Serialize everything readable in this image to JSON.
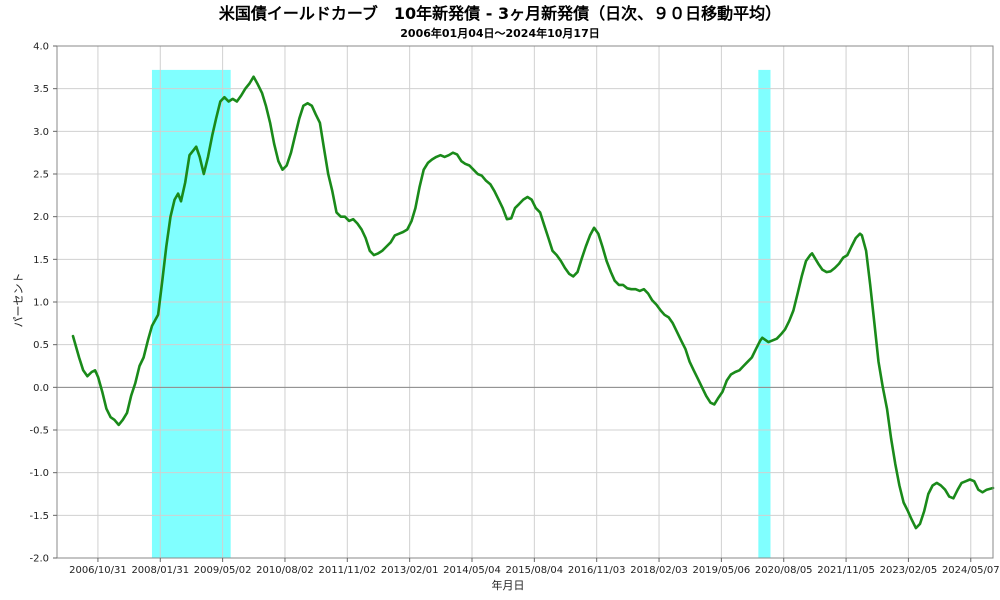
{
  "chart_data": {
    "type": "line",
    "title": "米国債イールドカーブ　10年新発債 - 3ヶ月新発債（日次、９０日移動平均）",
    "subtitle": "2006年01月04日～2024年10月17日",
    "xlabel": "年月日",
    "ylabel": "パーセント",
    "x_range": [
      "2006-01-04",
      "2024-10-17"
    ],
    "ylim": [
      -2.0,
      4.0
    ],
    "y_ticks": [
      "4.0",
      "3.5",
      "3.0",
      "2.5",
      "2.0",
      "1.5",
      "1.0",
      "0.5",
      "0.0",
      "-0.5",
      "-1.0",
      "-1.5",
      "-2.0"
    ],
    "x_tick_labels": [
      {
        "date": "2006-10-31",
        "label": "2006/10/31"
      },
      {
        "date": "2008-01-31",
        "label": "2008/01/31"
      },
      {
        "date": "2009-05-02",
        "label": "2009/05/02"
      },
      {
        "date": "2010-08-02",
        "label": "2010/08/02"
      },
      {
        "date": "2011-11-02",
        "label": "2011/11/02"
      },
      {
        "date": "2013-02-01",
        "label": "2013/02/01"
      },
      {
        "date": "2014-05-04",
        "label": "2014/05/04"
      },
      {
        "date": "2015-08-04",
        "label": "2015/08/04"
      },
      {
        "date": "2016-11-03",
        "label": "2016/11/03"
      },
      {
        "date": "2018-02-03",
        "label": "2018/02/03"
      },
      {
        "date": "2019-05-06",
        "label": "2019/05/06"
      },
      {
        "date": "2020-08-05",
        "label": "2020/08/05"
      },
      {
        "date": "2021-11-05",
        "label": "2021/11/05"
      },
      {
        "date": "2023-02-05",
        "label": "2023/02/05"
      },
      {
        "date": "2024-05-07",
        "label": "2024/05/07"
      }
    ],
    "grid": true,
    "zero_line": true,
    "recession_shading": [
      {
        "start": "2007-12-01",
        "end": "2009-06-30"
      },
      {
        "start": "2020-02-01",
        "end": "2020-04-30"
      }
    ],
    "series": [
      {
        "color": "#1a8a1a",
        "points": [
          [
            "2006-05-01",
            0.6
          ],
          [
            "2006-06-15",
            0.35
          ],
          [
            "2006-07-15",
            0.2
          ],
          [
            "2006-08-15",
            0.13
          ],
          [
            "2006-09-15",
            0.18
          ],
          [
            "2006-10-10",
            0.2
          ],
          [
            "2006-11-01",
            0.12
          ],
          [
            "2006-12-01",
            -0.05
          ],
          [
            "2007-01-01",
            -0.25
          ],
          [
            "2007-02-01",
            -0.35
          ],
          [
            "2007-03-01",
            -0.38
          ],
          [
            "2007-04-01",
            -0.44
          ],
          [
            "2007-05-01",
            -0.38
          ],
          [
            "2007-06-01",
            -0.3
          ],
          [
            "2007-07-01",
            -0.1
          ],
          [
            "2007-08-01",
            0.05
          ],
          [
            "2007-09-01",
            0.25
          ],
          [
            "2007-10-01",
            0.35
          ],
          [
            "2007-11-01",
            0.55
          ],
          [
            "2007-12-01",
            0.72
          ],
          [
            "2008-01-15",
            0.85
          ],
          [
            "2008-02-15",
            1.25
          ],
          [
            "2008-03-15",
            1.65
          ],
          [
            "2008-04-15",
            2.0
          ],
          [
            "2008-05-15",
            2.2
          ],
          [
            "2008-06-10",
            2.27
          ],
          [
            "2008-07-01",
            2.18
          ],
          [
            "2008-08-01",
            2.4
          ],
          [
            "2008-09-01",
            2.72
          ],
          [
            "2008-10-01",
            2.78
          ],
          [
            "2008-10-20",
            2.82
          ],
          [
            "2008-11-15",
            2.7
          ],
          [
            "2008-12-15",
            2.5
          ],
          [
            "2009-01-15",
            2.7
          ],
          [
            "2009-02-15",
            2.95
          ],
          [
            "2009-03-15",
            3.15
          ],
          [
            "2009-04-15",
            3.35
          ],
          [
            "2009-05-15",
            3.4
          ],
          [
            "2009-06-15",
            3.35
          ],
          [
            "2009-07-15",
            3.38
          ],
          [
            "2009-08-15",
            3.35
          ],
          [
            "2009-09-15",
            3.42
          ],
          [
            "2009-10-15",
            3.5
          ],
          [
            "2009-11-15",
            3.56
          ],
          [
            "2009-12-15",
            3.64
          ],
          [
            "2010-01-15",
            3.55
          ],
          [
            "2010-02-15",
            3.45
          ],
          [
            "2010-03-15",
            3.3
          ],
          [
            "2010-04-15",
            3.1
          ],
          [
            "2010-05-15",
            2.85
          ],
          [
            "2010-06-15",
            2.65
          ],
          [
            "2010-07-15",
            2.55
          ],
          [
            "2010-08-15",
            2.6
          ],
          [
            "2010-09-15",
            2.75
          ],
          [
            "2010-10-15",
            2.95
          ],
          [
            "2010-11-15",
            3.15
          ],
          [
            "2010-12-15",
            3.3
          ],
          [
            "2011-01-15",
            3.33
          ],
          [
            "2011-02-15",
            3.3
          ],
          [
            "2011-03-15",
            3.2
          ],
          [
            "2011-04-15",
            3.1
          ],
          [
            "2011-05-15",
            2.8
          ],
          [
            "2011-06-15",
            2.5
          ],
          [
            "2011-07-15",
            2.3
          ],
          [
            "2011-08-15",
            2.05
          ],
          [
            "2011-09-15",
            2.0
          ],
          [
            "2011-10-15",
            2.0
          ],
          [
            "2011-11-15",
            1.95
          ],
          [
            "2011-12-15",
            1.97
          ],
          [
            "2012-01-15",
            1.92
          ],
          [
            "2012-02-15",
            1.85
          ],
          [
            "2012-03-15",
            1.75
          ],
          [
            "2012-04-15",
            1.6
          ],
          [
            "2012-05-15",
            1.55
          ],
          [
            "2012-06-15",
            1.57
          ],
          [
            "2012-07-15",
            1.6
          ],
          [
            "2012-08-15",
            1.65
          ],
          [
            "2012-09-15",
            1.7
          ],
          [
            "2012-10-15",
            1.78
          ],
          [
            "2012-11-15",
            1.8
          ],
          [
            "2012-12-15",
            1.82
          ],
          [
            "2013-01-15",
            1.85
          ],
          [
            "2013-02-15",
            1.95
          ],
          [
            "2013-03-15",
            2.1
          ],
          [
            "2013-04-15",
            2.35
          ],
          [
            "2013-05-15",
            2.55
          ],
          [
            "2013-06-15",
            2.63
          ],
          [
            "2013-07-15",
            2.67
          ],
          [
            "2013-08-15",
            2.7
          ],
          [
            "2013-09-15",
            2.72
          ],
          [
            "2013-10-15",
            2.7
          ],
          [
            "2013-11-15",
            2.72
          ],
          [
            "2013-12-15",
            2.75
          ],
          [
            "2014-01-15",
            2.73
          ],
          [
            "2014-02-15",
            2.65
          ],
          [
            "2014-03-15",
            2.62
          ],
          [
            "2014-04-15",
            2.6
          ],
          [
            "2014-05-15",
            2.55
          ],
          [
            "2014-06-15",
            2.5
          ],
          [
            "2014-07-15",
            2.48
          ],
          [
            "2014-08-15",
            2.42
          ],
          [
            "2014-09-15",
            2.38
          ],
          [
            "2014-10-15",
            2.3
          ],
          [
            "2014-11-15",
            2.2
          ],
          [
            "2014-12-15",
            2.1
          ],
          [
            "2015-01-15",
            1.97
          ],
          [
            "2015-02-15",
            1.98
          ],
          [
            "2015-03-15",
            2.1
          ],
          [
            "2015-04-15",
            2.15
          ],
          [
            "2015-05-15",
            2.2
          ],
          [
            "2015-06-15",
            2.23
          ],
          [
            "2015-07-15",
            2.2
          ],
          [
            "2015-08-15",
            2.1
          ],
          [
            "2015-09-15",
            2.05
          ],
          [
            "2015-10-15",
            1.9
          ],
          [
            "2015-11-15",
            1.75
          ],
          [
            "2015-12-15",
            1.6
          ],
          [
            "2016-01-15",
            1.55
          ],
          [
            "2016-02-15",
            1.48
          ],
          [
            "2016-03-15",
            1.4
          ],
          [
            "2016-04-15",
            1.33
          ],
          [
            "2016-05-15",
            1.3
          ],
          [
            "2016-06-15",
            1.35
          ],
          [
            "2016-07-15",
            1.5
          ],
          [
            "2016-08-15",
            1.65
          ],
          [
            "2016-09-15",
            1.78
          ],
          [
            "2016-10-15",
            1.87
          ],
          [
            "2016-11-15",
            1.8
          ],
          [
            "2016-12-15",
            1.65
          ],
          [
            "2017-01-15",
            1.48
          ],
          [
            "2017-02-15",
            1.35
          ],
          [
            "2017-03-15",
            1.25
          ],
          [
            "2017-04-15",
            1.2
          ],
          [
            "2017-05-15",
            1.2
          ],
          [
            "2017-06-15",
            1.16
          ],
          [
            "2017-07-15",
            1.15
          ],
          [
            "2017-08-15",
            1.15
          ],
          [
            "2017-09-15",
            1.13
          ],
          [
            "2017-10-15",
            1.15
          ],
          [
            "2017-11-15",
            1.1
          ],
          [
            "2017-12-15",
            1.02
          ],
          [
            "2018-01-15",
            0.97
          ],
          [
            "2018-02-15",
            0.9
          ],
          [
            "2018-03-15",
            0.85
          ],
          [
            "2018-04-15",
            0.82
          ],
          [
            "2018-05-15",
            0.75
          ],
          [
            "2018-06-15",
            0.65
          ],
          [
            "2018-07-15",
            0.55
          ],
          [
            "2018-08-15",
            0.45
          ],
          [
            "2018-09-15",
            0.3
          ],
          [
            "2018-10-15",
            0.2
          ],
          [
            "2018-11-15",
            0.1
          ],
          [
            "2018-12-15",
            0.0
          ],
          [
            "2019-01-15",
            -0.1
          ],
          [
            "2019-02-15",
            -0.18
          ],
          [
            "2019-03-15",
            -0.2
          ],
          [
            "2019-04-15",
            -0.12
          ],
          [
            "2019-05-15",
            -0.05
          ],
          [
            "2019-06-15",
            0.08
          ],
          [
            "2019-07-15",
            0.15
          ],
          [
            "2019-08-15",
            0.18
          ],
          [
            "2019-09-15",
            0.2
          ],
          [
            "2019-10-15",
            0.25
          ],
          [
            "2019-11-15",
            0.3
          ],
          [
            "2019-12-15",
            0.35
          ],
          [
            "2020-01-15",
            0.45
          ],
          [
            "2020-02-15",
            0.55
          ],
          [
            "2020-03-01",
            0.58
          ],
          [
            "2020-04-15",
            0.53
          ],
          [
            "2020-05-15",
            0.55
          ],
          [
            "2020-06-15",
            0.57
          ],
          [
            "2020-07-15",
            0.62
          ],
          [
            "2020-08-15",
            0.68
          ],
          [
            "2020-09-15",
            0.78
          ],
          [
            "2020-10-15",
            0.9
          ],
          [
            "2020-11-15",
            1.1
          ],
          [
            "2020-12-15",
            1.3
          ],
          [
            "2021-01-15",
            1.48
          ],
          [
            "2021-02-15",
            1.55
          ],
          [
            "2021-03-01",
            1.57
          ],
          [
            "2021-04-15",
            1.45
          ],
          [
            "2021-05-15",
            1.38
          ],
          [
            "2021-06-15",
            1.35
          ],
          [
            "2021-07-15",
            1.36
          ],
          [
            "2021-08-15",
            1.4
          ],
          [
            "2021-09-15",
            1.45
          ],
          [
            "2021-10-15",
            1.52
          ],
          [
            "2021-11-15",
            1.55
          ],
          [
            "2021-12-15",
            1.65
          ],
          [
            "2022-01-15",
            1.75
          ],
          [
            "2022-02-15",
            1.8
          ],
          [
            "2022-03-01",
            1.78
          ],
          [
            "2022-04-01",
            1.6
          ],
          [
            "2022-05-01",
            1.2
          ],
          [
            "2022-06-01",
            0.75
          ],
          [
            "2022-07-01",
            0.3
          ],
          [
            "2022-08-01",
            0.0
          ],
          [
            "2022-09-01",
            -0.25
          ],
          [
            "2022-10-01",
            -0.6
          ],
          [
            "2022-11-01",
            -0.9
          ],
          [
            "2022-12-01",
            -1.15
          ],
          [
            "2023-01-01",
            -1.35
          ],
          [
            "2023-02-01",
            -1.45
          ],
          [
            "2023-03-01",
            -1.55
          ],
          [
            "2023-04-01",
            -1.65
          ],
          [
            "2023-05-01",
            -1.6
          ],
          [
            "2023-06-01",
            -1.45
          ],
          [
            "2023-07-01",
            -1.25
          ],
          [
            "2023-08-01",
            -1.15
          ],
          [
            "2023-09-01",
            -1.12
          ],
          [
            "2023-10-01",
            -1.15
          ],
          [
            "2023-11-01",
            -1.2
          ],
          [
            "2023-12-01",
            -1.28
          ],
          [
            "2024-01-01",
            -1.3
          ],
          [
            "2024-02-01",
            -1.2
          ],
          [
            "2024-03-01",
            -1.12
          ],
          [
            "2024-04-01",
            -1.1
          ],
          [
            "2024-05-01",
            -1.08
          ],
          [
            "2024-06-01",
            -1.1
          ],
          [
            "2024-07-01",
            -1.2
          ],
          [
            "2024-08-01",
            -1.23
          ],
          [
            "2024-09-01",
            -1.2
          ],
          [
            "2024-10-17",
            -1.18
          ]
        ]
      }
    ]
  }
}
